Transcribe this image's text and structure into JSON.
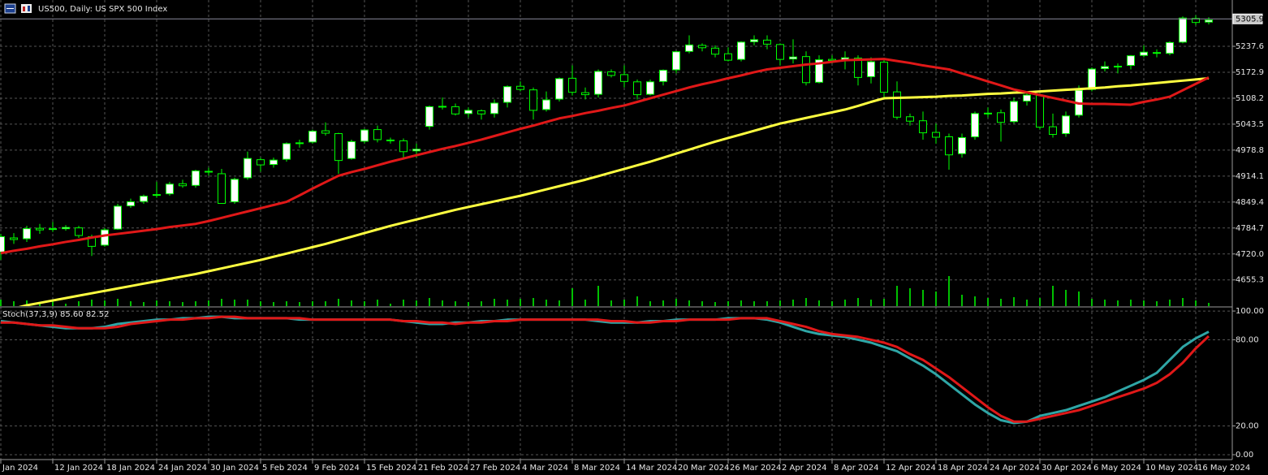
{
  "chart_data": [
    {
      "type": "candlestick",
      "title": "US500, Daily:  US SPX 500 Index",
      "categories": [
        "Jan 2024",
        null,
        null,
        null,
        "12 Jan 2024",
        null,
        null,
        null,
        "18 Jan 2024",
        null,
        null,
        null,
        "24 Jan 2024",
        null,
        null,
        null,
        "30 Jan 2024",
        null,
        null,
        null,
        "5 Feb 2024",
        null,
        null,
        null,
        "9 Feb 2024",
        null,
        null,
        null,
        "15 Feb 2024",
        null,
        null,
        null,
        "21 Feb 2024",
        null,
        null,
        null,
        "27 Feb 2024",
        null,
        null,
        null,
        "4 Mar 2024",
        null,
        null,
        null,
        "8 Mar 2024",
        null,
        null,
        null,
        "14 Mar 2024",
        null,
        null,
        null,
        "20 Mar 2024",
        null,
        null,
        null,
        "26 Mar 2024",
        null,
        null,
        null,
        "2 Apr 2024",
        null,
        null,
        null,
        "8 Apr 2024",
        null,
        null,
        null,
        "12 Apr 2024",
        null,
        null,
        null,
        "18 Apr 2024",
        null,
        null,
        null,
        "24 Apr 2024",
        null,
        null,
        null,
        "30 Apr 2024",
        null,
        null,
        null,
        "6 May 2024",
        null,
        null,
        null,
        "10 May 2024",
        null,
        null,
        null,
        "16 May 2024",
        null
      ],
      "open": [
        4725,
        4760,
        4758,
        4784,
        4781,
        4783,
        4785,
        4763,
        4742,
        4782,
        4840,
        4851,
        4866,
        4870,
        4895,
        4891,
        4926,
        4920,
        4850,
        4910,
        4955,
        4943,
        4956,
        4996,
        4999,
        5027,
        5020,
        4958,
        5001,
        5030,
        5004,
        5002,
        4977,
        5038,
        5088,
        5087,
        5070,
        5077,
        5070,
        5098,
        5138,
        5129,
        5080,
        5106,
        5158,
        5122,
        5118,
        5174,
        5167,
        5149,
        5118,
        5150,
        5179,
        5225,
        5240,
        5233,
        5219,
        5205,
        5249,
        5253,
        5242,
        5206,
        5212,
        5148,
        5205,
        5203,
        5208,
        5162,
        5198,
        5124,
        5062,
        5052,
        5023,
        5012,
        4970,
        5012,
        5069,
        5072,
        5050,
        5101,
        5115,
        5037,
        5020,
        5066,
        5130,
        5182,
        5186,
        5190,
        5215,
        5222,
        5220,
        5248,
        5307,
        5298
      ],
      "high": [
        4770,
        4772,
        4790,
        4795,
        4800,
        4792,
        4790,
        4768,
        4785,
        4845,
        4858,
        4868,
        4900,
        4900,
        4905,
        4930,
        4935,
        4932,
        4910,
        4975,
        4960,
        4960,
        4998,
        5005,
        5030,
        5048,
        5022,
        5005,
        5032,
        5040,
        5010,
        5008,
        4995,
        5090,
        5110,
        5095,
        5085,
        5080,
        5105,
        5140,
        5150,
        5135,
        5125,
        5160,
        5190,
        5135,
        5180,
        5180,
        5190,
        5155,
        5155,
        5180,
        5226,
        5265,
        5245,
        5240,
        5235,
        5250,
        5265,
        5265,
        5245,
        5255,
        5225,
        5215,
        5215,
        5225,
        5215,
        5210,
        5205,
        5150,
        5070,
        5075,
        5045,
        5020,
        5020,
        5075,
        5085,
        5080,
        5110,
        5125,
        5120,
        5070,
        5075,
        5140,
        5185,
        5200,
        5195,
        5216,
        5240,
        5230,
        5250,
        5312,
        5315,
        5310
      ],
      "low": [
        4705,
        4745,
        4750,
        4770,
        4775,
        4778,
        4760,
        4715,
        4738,
        4780,
        4835,
        4845,
        4860,
        4865,
        4885,
        4885,
        4915,
        4845,
        4845,
        4905,
        4925,
        4935,
        4950,
        4985,
        4995,
        5015,
        4920,
        4955,
        4995,
        4998,
        4995,
        4955,
        4960,
        5030,
        5080,
        5065,
        5060,
        5055,
        5060,
        5085,
        5125,
        5055,
        5075,
        5100,
        5115,
        5105,
        5110,
        5160,
        5135,
        5105,
        5115,
        5140,
        5170,
        5220,
        5225,
        5210,
        5200,
        5200,
        5240,
        5230,
        5190,
        5195,
        5140,
        5145,
        5195,
        5180,
        5140,
        5145,
        5110,
        5055,
        5040,
        5005,
        4995,
        4930,
        4960,
        5005,
        5060,
        5000,
        5045,
        5090,
        5030,
        5010,
        5012,
        5060,
        5125,
        5175,
        5170,
        5180,
        5210,
        5210,
        5215,
        5245,
        5290,
        5292
      ],
      "close": [
        4763,
        4756,
        4783,
        4780,
        4783,
        4786,
        4766,
        4739,
        4780,
        4839,
        4850,
        4864,
        4868,
        4894,
        4890,
        4927,
        4924,
        4846,
        4906,
        4958,
        4942,
        4954,
        4995,
        4997,
        5026,
        5021,
        4953,
        5000,
        5029,
        5005,
        5003,
        4975,
        4981,
        5087,
        5088,
        5069,
        5078,
        5069,
        5096,
        5137,
        5130,
        5078,
        5104,
        5157,
        5123,
        5117,
        5175,
        5165,
        5150,
        5117,
        5149,
        5178,
        5224,
        5241,
        5234,
        5218,
        5203,
        5248,
        5254,
        5243,
        5205,
        5211,
        5147,
        5204,
        5202,
        5209,
        5160,
        5199,
        5123,
        5061,
        5051,
        5022,
        5011,
        4967,
        5010,
        5070,
        5071,
        5048,
        5100,
        5116,
        5036,
        5018,
        5064,
        5128,
        5181,
        5187,
        5188,
        5214,
        5223,
        5221,
        5247,
        5308,
        5297,
        5303
      ],
      "up_color": "#ffffff",
      "down_color": "#000000",
      "wick_color": "#00ff00",
      "series": [
        {
          "color": "#ffff40",
          "values": [
            4575,
            4584,
            4592,
            4598,
            4604,
            4610,
            4616,
            4622,
            4628,
            4634,
            4640,
            4646,
            4652,
            4658,
            4664,
            4670,
            4677,
            4684,
            4691,
            4698,
            4705,
            4713,
            4721,
            4729,
            4737,
            4745,
            4754,
            4763,
            4772,
            4781,
            4790,
            4798,
            4806,
            4814,
            4822,
            4830,
            4837,
            4844,
            4851,
            4858,
            4865,
            4873,
            4881,
            4889,
            4897,
            4905,
            4914,
            4923,
            4932,
            4941,
            4950,
            4960,
            4970,
            4980,
            4990,
            5000,
            5009,
            5018,
            5027,
            5036,
            5045,
            5052,
            5059,
            5066,
            5073,
            5080,
            5089,
            5099,
            5108,
            5109,
            5110,
            5111,
            5112,
            5114,
            5115,
            5117,
            5119,
            5120,
            5122,
            5123,
            5125,
            5127,
            5129,
            5131,
            5133,
            5135,
            5138,
            5140,
            5143,
            5146,
            5149,
            5152,
            5155,
            5158
          ]
        },
        {
          "color": "#e01818",
          "values": [
            4722,
            4728,
            4733,
            4739,
            4744,
            4750,
            4755,
            4761,
            4766,
            4770,
            4774,
            4778,
            4782,
            4787,
            4791,
            4795,
            4802,
            4810,
            4818,
            4826,
            4834,
            4842,
            4850,
            4866,
            4883,
            4899,
            4915,
            4924,
            4932,
            4941,
            4950,
            4958,
            4966,
            4974,
            4982,
            4989,
            4997,
            5005,
            5014,
            5023,
            5032,
            5040,
            5049,
            5058,
            5064,
            5071,
            5077,
            5084,
            5090,
            5099,
            5108,
            5117,
            5126,
            5135,
            5143,
            5150,
            5158,
            5165,
            5173,
            5180,
            5184,
            5188,
            5192,
            5195,
            5199,
            5203,
            5204,
            5205,
            5206,
            5201,
            5196,
            5190,
            5185,
            5180,
            5170,
            5160,
            5150,
            5140,
            5130,
            5123,
            5116,
            5109,
            5102,
            5095,
            5094,
            5094,
            5093,
            5092,
            5099,
            5105,
            5112,
            5128,
            5144,
            5160
          ]
        }
      ],
      "volume": {
        "color": "#00c000",
        "values": [
          8,
          6,
          7,
          5,
          6,
          3,
          6,
          8,
          7,
          9,
          6,
          5,
          7,
          6,
          5,
          6,
          7,
          9,
          8,
          8,
          6,
          5,
          6,
          5,
          6,
          6,
          9,
          7,
          6,
          8,
          3,
          8,
          7,
          10,
          7,
          6,
          5,
          6,
          9,
          8,
          9,
          10,
          8,
          7,
          22,
          8,
          25,
          7,
          8,
          12,
          6,
          7,
          9,
          7,
          6,
          5,
          6,
          7,
          6,
          6,
          7,
          8,
          10,
          7,
          6,
          8,
          10,
          8,
          9,
          25,
          22,
          20,
          18,
          37,
          14,
          12,
          10,
          9,
          11,
          8,
          10,
          25,
          20,
          18,
          9,
          8,
          7,
          8,
          7,
          6,
          8,
          10,
          7,
          4
        ]
      },
      "last_price": 5305.9,
      "ylim": [
        4590,
        5353
      ],
      "yticks": [
        5237.6,
        5172.9,
        5108.2,
        5043.5,
        4978.8,
        4914.1,
        4849.4,
        4784.7,
        {
          "value": 4720,
          "label": "4720.0"
        },
        4655.3
      ],
      "grid": true
    },
    {
      "type": "line",
      "title": "Stoch(37,3,9) 85.60 82.52",
      "series": [
        {
          "color": "#2fa6a6",
          "values": [
            93,
            92,
            91,
            90,
            89,
            88,
            88,
            88,
            89,
            91,
            92,
            93,
            94,
            94,
            95,
            95,
            96,
            96,
            95,
            95,
            95,
            95,
            95,
            94,
            94,
            94,
            94,
            94,
            94,
            94,
            94,
            93,
            92,
            91,
            91,
            92,
            92,
            93,
            93,
            94,
            94,
            94,
            94,
            94,
            94,
            94,
            93,
            92,
            92,
            92,
            93,
            93,
            94,
            94,
            94,
            94,
            95,
            95,
            95,
            94,
            92,
            89,
            86,
            84,
            83,
            82,
            80,
            78,
            75,
            72,
            67,
            62,
            56,
            49,
            42,
            35,
            29,
            24,
            22,
            23,
            27,
            29,
            31,
            34,
            37,
            40,
            44,
            48,
            52,
            57,
            66,
            75,
            81,
            85.6
          ]
        },
        {
          "color": "#e01818",
          "values": [
            92,
            92,
            91,
            90,
            90,
            89,
            88,
            88,
            88,
            89,
            91,
            92,
            93,
            94,
            94,
            95,
            95,
            96,
            96,
            95,
            95,
            95,
            95,
            95,
            94,
            94,
            94,
            94,
            94,
            94,
            94,
            93,
            93,
            92,
            92,
            91,
            92,
            92,
            93,
            93,
            94,
            94,
            94,
            94,
            94,
            94,
            94,
            93,
            93,
            92,
            92,
            93,
            93,
            94,
            94,
            94,
            94,
            95,
            95,
            95,
            93,
            91,
            89,
            86,
            84,
            83,
            82,
            80,
            78,
            75,
            70,
            66,
            60,
            54,
            47,
            40,
            33,
            27,
            23,
            23,
            25,
            27,
            29,
            31,
            34,
            37,
            40,
            43,
            46,
            50,
            56,
            64,
            74,
            82.52
          ]
        }
      ],
      "ylim": [
        -3.4,
        102.3
      ],
      "yticks": [
        {
          "value": 100,
          "label": "100.00"
        },
        {
          "value": 80,
          "label": "80.00"
        },
        {
          "value": 20,
          "label": "20.00"
        },
        {
          "value": 0,
          "label": "0.00"
        }
      ],
      "grid": true
    }
  ]
}
